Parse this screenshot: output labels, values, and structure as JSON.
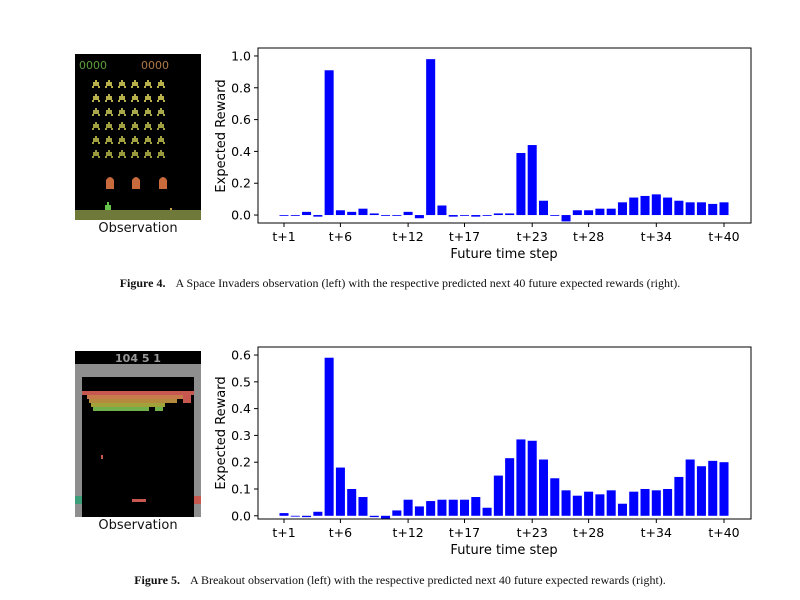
{
  "figures": [
    {
      "observation_label": "Observation",
      "caption_label": "Figure 4.",
      "caption_text": "A Space Invaders observation (left) with the respective predicted next 40 future expected rewards (right).",
      "observation": {
        "type": "space-invaders",
        "score_left": "0000",
        "score_right": "0000"
      },
      "chart_data": {
        "type": "bar",
        "title": "",
        "xlabel": "Future time step",
        "ylabel": "Expected Reward",
        "ylim": [
          -0.05,
          1.05
        ],
        "yticks": [
          "0.0",
          "0.2",
          "0.4",
          "0.6",
          "0.8",
          "1.0"
        ],
        "xticks": [
          {
            "index": 1,
            "label": "t+1"
          },
          {
            "index": 6,
            "label": "t+6"
          },
          {
            "index": 12,
            "label": "t+12"
          },
          {
            "index": 17,
            "label": "t+17"
          },
          {
            "index": 23,
            "label": "t+23"
          },
          {
            "index": 28,
            "label": "t+28"
          },
          {
            "index": 34,
            "label": "t+34"
          },
          {
            "index": 40,
            "label": "t+40"
          }
        ],
        "grid": false,
        "bar_color": "#0000ff",
        "values": [
          0.0,
          0.0,
          0.02,
          -0.01,
          0.91,
          0.03,
          0.02,
          0.04,
          0.01,
          0.0,
          0.0,
          0.02,
          -0.02,
          0.98,
          0.06,
          -0.01,
          0.0,
          -0.01,
          0.0,
          0.01,
          0.01,
          0.39,
          0.44,
          0.09,
          0.0,
          -0.04,
          0.03,
          0.03,
          0.04,
          0.04,
          0.08,
          0.11,
          0.12,
          0.13,
          0.11,
          0.09,
          0.08,
          0.08,
          0.07,
          0.08
        ]
      }
    },
    {
      "observation_label": "Observation",
      "caption_label": "Figure 5.",
      "caption_text": "A Breakout observation (left) with the respective predicted next 40 future expected rewards (right).",
      "observation": {
        "type": "breakout",
        "score_text": "104 5 1"
      },
      "chart_data": {
        "type": "bar",
        "title": "",
        "xlabel": "Future time step",
        "ylabel": "Expected Reward",
        "ylim": [
          -0.012,
          0.63
        ],
        "yticks": [
          "0.0",
          "0.1",
          "0.2",
          "0.3",
          "0.4",
          "0.5",
          "0.6"
        ],
        "xticks": [
          {
            "index": 1,
            "label": "t+1"
          },
          {
            "index": 6,
            "label": "t+6"
          },
          {
            "index": 12,
            "label": "t+12"
          },
          {
            "index": 17,
            "label": "t+17"
          },
          {
            "index": 23,
            "label": "t+23"
          },
          {
            "index": 28,
            "label": "t+28"
          },
          {
            "index": 34,
            "label": "t+34"
          },
          {
            "index": 40,
            "label": "t+40"
          }
        ],
        "grid": false,
        "bar_color": "#0000ff",
        "values": [
          0.01,
          0.0,
          -0.005,
          0.015,
          0.59,
          0.18,
          0.1,
          0.07,
          -0.005,
          -0.01,
          0.02,
          0.06,
          0.035,
          0.055,
          0.06,
          0.06,
          0.06,
          0.07,
          0.03,
          0.15,
          0.215,
          0.285,
          0.28,
          0.21,
          0.14,
          0.095,
          0.075,
          0.09,
          0.08,
          0.095,
          0.045,
          0.09,
          0.1,
          0.095,
          0.1,
          0.145,
          0.21,
          0.185,
          0.205,
          0.2
        ]
      }
    }
  ]
}
